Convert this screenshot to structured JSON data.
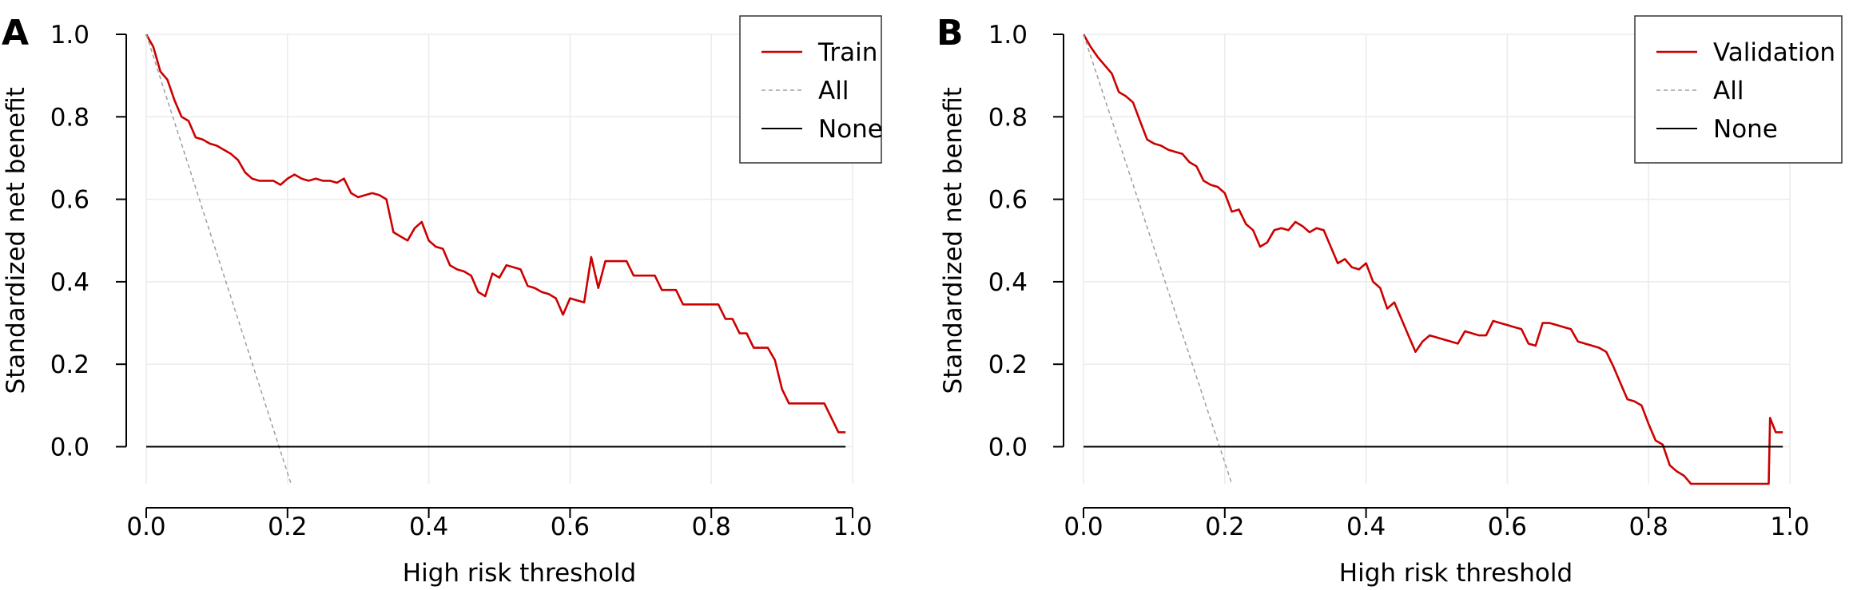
{
  "chart_data": [
    {
      "panel_label": "A",
      "type": "line",
      "xlabel": "High risk threshold",
      "ylabel": "Standardized net benefit",
      "xlim": [
        0,
        1
      ],
      "ylim": [
        -0.09,
        1.0
      ],
      "x_ticks": [
        "0.0",
        "0.2",
        "0.4",
        "0.6",
        "0.8",
        "1.0"
      ],
      "y_ticks": [
        "0.0",
        "0.2",
        "0.4",
        "0.6",
        "0.8",
        "1.0"
      ],
      "grid": true,
      "legend_position": "top-right",
      "series": [
        {
          "name": "Train",
          "color": "#cc0000",
          "style": "solid",
          "x": [
            0.0,
            0.01,
            0.02,
            0.03,
            0.04,
            0.05,
            0.06,
            0.07,
            0.08,
            0.09,
            0.1,
            0.11,
            0.12,
            0.13,
            0.14,
            0.15,
            0.16,
            0.17,
            0.18,
            0.19,
            0.2,
            0.21,
            0.22,
            0.23,
            0.24,
            0.25,
            0.26,
            0.27,
            0.28,
            0.29,
            0.3,
            0.31,
            0.32,
            0.33,
            0.34,
            0.35,
            0.36,
            0.37,
            0.38,
            0.39,
            0.4,
            0.41,
            0.42,
            0.43,
            0.44,
            0.45,
            0.46,
            0.47,
            0.48,
            0.49,
            0.5,
            0.51,
            0.52,
            0.53,
            0.54,
            0.55,
            0.56,
            0.57,
            0.58,
            0.59,
            0.6,
            0.61,
            0.62,
            0.63,
            0.64,
            0.65,
            0.66,
            0.67,
            0.68,
            0.69,
            0.7,
            0.71,
            0.72,
            0.73,
            0.74,
            0.75,
            0.76,
            0.77,
            0.78,
            0.79,
            0.8,
            0.81,
            0.82,
            0.83,
            0.84,
            0.85,
            0.86,
            0.87,
            0.88,
            0.89,
            0.9,
            0.91,
            0.92,
            0.93,
            0.94,
            0.95,
            0.96,
            0.97,
            0.98,
            0.99
          ],
          "y": [
            1.0,
            0.97,
            0.91,
            0.89,
            0.84,
            0.8,
            0.79,
            0.75,
            0.745,
            0.735,
            0.73,
            0.72,
            0.71,
            0.695,
            0.665,
            0.65,
            0.645,
            0.645,
            0.645,
            0.635,
            0.65,
            0.66,
            0.65,
            0.645,
            0.65,
            0.645,
            0.645,
            0.64,
            0.65,
            0.615,
            0.605,
            0.61,
            0.615,
            0.61,
            0.6,
            0.52,
            0.51,
            0.5,
            0.53,
            0.545,
            0.5,
            0.485,
            0.48,
            0.44,
            0.43,
            0.425,
            0.415,
            0.375,
            0.365,
            0.42,
            0.41,
            0.44,
            0.435,
            0.43,
            0.39,
            0.385,
            0.375,
            0.37,
            0.36,
            0.32,
            0.36,
            0.355,
            0.35,
            0.46,
            0.385,
            0.45,
            0.45,
            0.45,
            0.45,
            0.415,
            0.415,
            0.415,
            0.415,
            0.38,
            0.38,
            0.38,
            0.345,
            0.345,
            0.345,
            0.345,
            0.345,
            0.345,
            0.31,
            0.31,
            0.275,
            0.275,
            0.24,
            0.24,
            0.24,
            0.21,
            0.14,
            0.105,
            0.105,
            0.105,
            0.105,
            0.105,
            0.105,
            0.07,
            0.035,
            0.035
          ]
        },
        {
          "name": "All",
          "color": "#9e9e9e",
          "style": "dashed",
          "x": [
            0.0,
            0.205
          ],
          "y": [
            1.0,
            -0.09
          ]
        },
        {
          "name": "None",
          "color": "#000000",
          "style": "solid",
          "x": [
            0.0,
            0.99
          ],
          "y": [
            0.0,
            0.0
          ]
        }
      ]
    },
    {
      "panel_label": "B",
      "type": "line",
      "xlabel": "High risk threshold",
      "ylabel": "Standardized net benefit",
      "xlim": [
        0,
        1
      ],
      "ylim": [
        -0.09,
        1.0
      ],
      "x_ticks": [
        "0.0",
        "0.2",
        "0.4",
        "0.6",
        "0.8",
        "1.0"
      ],
      "y_ticks": [
        "0.0",
        "0.2",
        "0.4",
        "0.6",
        "0.8",
        "1.0"
      ],
      "grid": true,
      "legend_position": "top-right",
      "series": [
        {
          "name": "Validation",
          "color": "#cc0000",
          "style": "solid",
          "x": [
            0.0,
            0.01,
            0.02,
            0.03,
            0.04,
            0.05,
            0.06,
            0.07,
            0.08,
            0.09,
            0.1,
            0.11,
            0.12,
            0.13,
            0.14,
            0.15,
            0.16,
            0.17,
            0.18,
            0.19,
            0.2,
            0.21,
            0.22,
            0.23,
            0.24,
            0.25,
            0.26,
            0.27,
            0.28,
            0.29,
            0.3,
            0.31,
            0.32,
            0.33,
            0.34,
            0.35,
            0.36,
            0.37,
            0.38,
            0.39,
            0.4,
            0.41,
            0.42,
            0.43,
            0.44,
            0.45,
            0.46,
            0.47,
            0.48,
            0.49,
            0.5,
            0.51,
            0.52,
            0.53,
            0.54,
            0.55,
            0.56,
            0.57,
            0.58,
            0.59,
            0.6,
            0.61,
            0.62,
            0.63,
            0.64,
            0.65,
            0.66,
            0.67,
            0.68,
            0.69,
            0.7,
            0.71,
            0.72,
            0.73,
            0.74,
            0.75,
            0.76,
            0.77,
            0.78,
            0.79,
            0.8,
            0.81,
            0.82,
            0.83,
            0.84,
            0.85,
            0.86,
            0.865,
            0.97,
            0.972,
            0.98,
            0.99
          ],
          "y": [
            1.0,
            0.97,
            0.945,
            0.925,
            0.905,
            0.86,
            0.85,
            0.835,
            0.79,
            0.745,
            0.735,
            0.73,
            0.72,
            0.715,
            0.71,
            0.69,
            0.68,
            0.645,
            0.635,
            0.63,
            0.615,
            0.57,
            0.575,
            0.54,
            0.525,
            0.485,
            0.495,
            0.525,
            0.53,
            0.525,
            0.545,
            0.535,
            0.52,
            0.53,
            0.525,
            0.485,
            0.445,
            0.455,
            0.435,
            0.43,
            0.445,
            0.4,
            0.385,
            0.335,
            0.35,
            0.31,
            0.27,
            0.23,
            0.255,
            0.27,
            0.265,
            0.26,
            0.255,
            0.25,
            0.28,
            0.275,
            0.27,
            0.27,
            0.305,
            0.3,
            0.295,
            0.29,
            0.285,
            0.25,
            0.245,
            0.3,
            0.3,
            0.295,
            0.29,
            0.285,
            0.255,
            0.25,
            0.245,
            0.24,
            0.23,
            0.195,
            0.155,
            0.115,
            0.11,
            0.1,
            0.055,
            0.015,
            0.005,
            -0.045,
            -0.06,
            -0.07,
            -0.09,
            -0.09,
            -0.09,
            0.07,
            0.035,
            0.035
          ]
        },
        {
          "name": "All",
          "color": "#9e9e9e",
          "style": "dashed",
          "x": [
            0.0,
            0.21
          ],
          "y": [
            1.0,
            -0.09
          ]
        },
        {
          "name": "None",
          "color": "#000000",
          "style": "solid",
          "x": [
            0.0,
            0.99
          ],
          "y": [
            0.0,
            0.0
          ]
        }
      ]
    }
  ]
}
